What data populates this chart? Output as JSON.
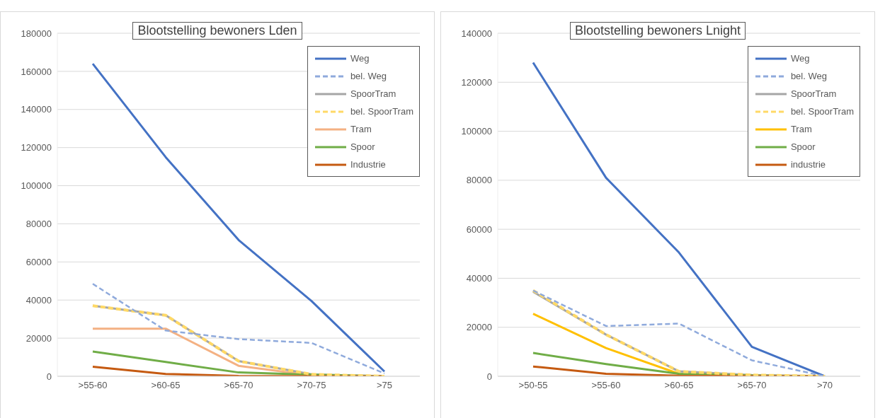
{
  "chart_data": [
    {
      "type": "line",
      "title": "Blootstelling bewoners Lden",
      "categories": [
        ">55-60",
        ">60-65",
        ">65-70",
        ">70-75",
        ">75"
      ],
      "ylim": [
        0,
        180000
      ],
      "yticks": [
        0,
        20000,
        40000,
        60000,
        80000,
        100000,
        120000,
        140000,
        160000,
        180000
      ],
      "grid": "y",
      "legend": "top right",
      "marker": "none",
      "series": [
        {
          "name": "Weg",
          "color": "#4472c4",
          "values": [
            164000,
            115000,
            71500,
            39500,
            2500
          ]
        },
        {
          "name": "bel. Weg",
          "color": "#8faadc",
          "line_style": "dashed",
          "values": [
            48500,
            24000,
            19500,
            17500,
            1500
          ]
        },
        {
          "name": "SpoorTram",
          "color": "#a5a5a5",
          "values": [
            37000,
            32000,
            8000,
            1000,
            0
          ]
        },
        {
          "name": "bel. SpoorTram",
          "color": "#ffd966",
          "line_style": "dashed",
          "values": [
            37000,
            32000,
            8000,
            1000,
            0
          ]
        },
        {
          "name": "Tram",
          "color": "#f4b183",
          "values": [
            25000,
            25000,
            5500,
            500,
            0
          ]
        },
        {
          "name": "Spoor",
          "color": "#70ad47",
          "values": [
            13000,
            7500,
            2000,
            800,
            0
          ]
        },
        {
          "name": "Industrie",
          "color": "#c55a11",
          "values": [
            5000,
            1200,
            200,
            100,
            0
          ]
        }
      ]
    },
    {
      "type": "line",
      "title": "Blootstelling bewoners Lnight",
      "categories": [
        ">50-55",
        ">55-60",
        ">60-65",
        ">65-70",
        ">70"
      ],
      "ylim": [
        0,
        140000
      ],
      "yticks": [
        0,
        20000,
        40000,
        60000,
        80000,
        100000,
        120000,
        140000
      ],
      "grid": "y",
      "legend": "top right",
      "marker": "none",
      "series": [
        {
          "name": "Weg",
          "color": "#4472c4",
          "values": [
            128000,
            81000,
            50500,
            12000,
            0
          ]
        },
        {
          "name": "bel. Weg",
          "color": "#8faadc",
          "line_style": "dashed",
          "values": [
            35000,
            20500,
            21500,
            6500,
            0
          ]
        },
        {
          "name": "SpoorTram",
          "color": "#a5a5a5",
          "values": [
            34500,
            17000,
            2000,
            500,
            0
          ]
        },
        {
          "name": "bel. SpoorTram",
          "color": "#ffd966",
          "line_style": "dashed",
          "values": [
            35000,
            17000,
            2000,
            500,
            0
          ]
        },
        {
          "name": "Tram",
          "color": "#ffc000",
          "values": [
            25500,
            11500,
            1000,
            200,
            0
          ]
        },
        {
          "name": "Spoor",
          "color": "#70ad47",
          "values": [
            9500,
            5000,
            1000,
            300,
            0
          ]
        },
        {
          "name": "industrie",
          "color": "#c55a11",
          "values": [
            4000,
            1000,
            200,
            100,
            0
          ]
        }
      ]
    }
  ]
}
